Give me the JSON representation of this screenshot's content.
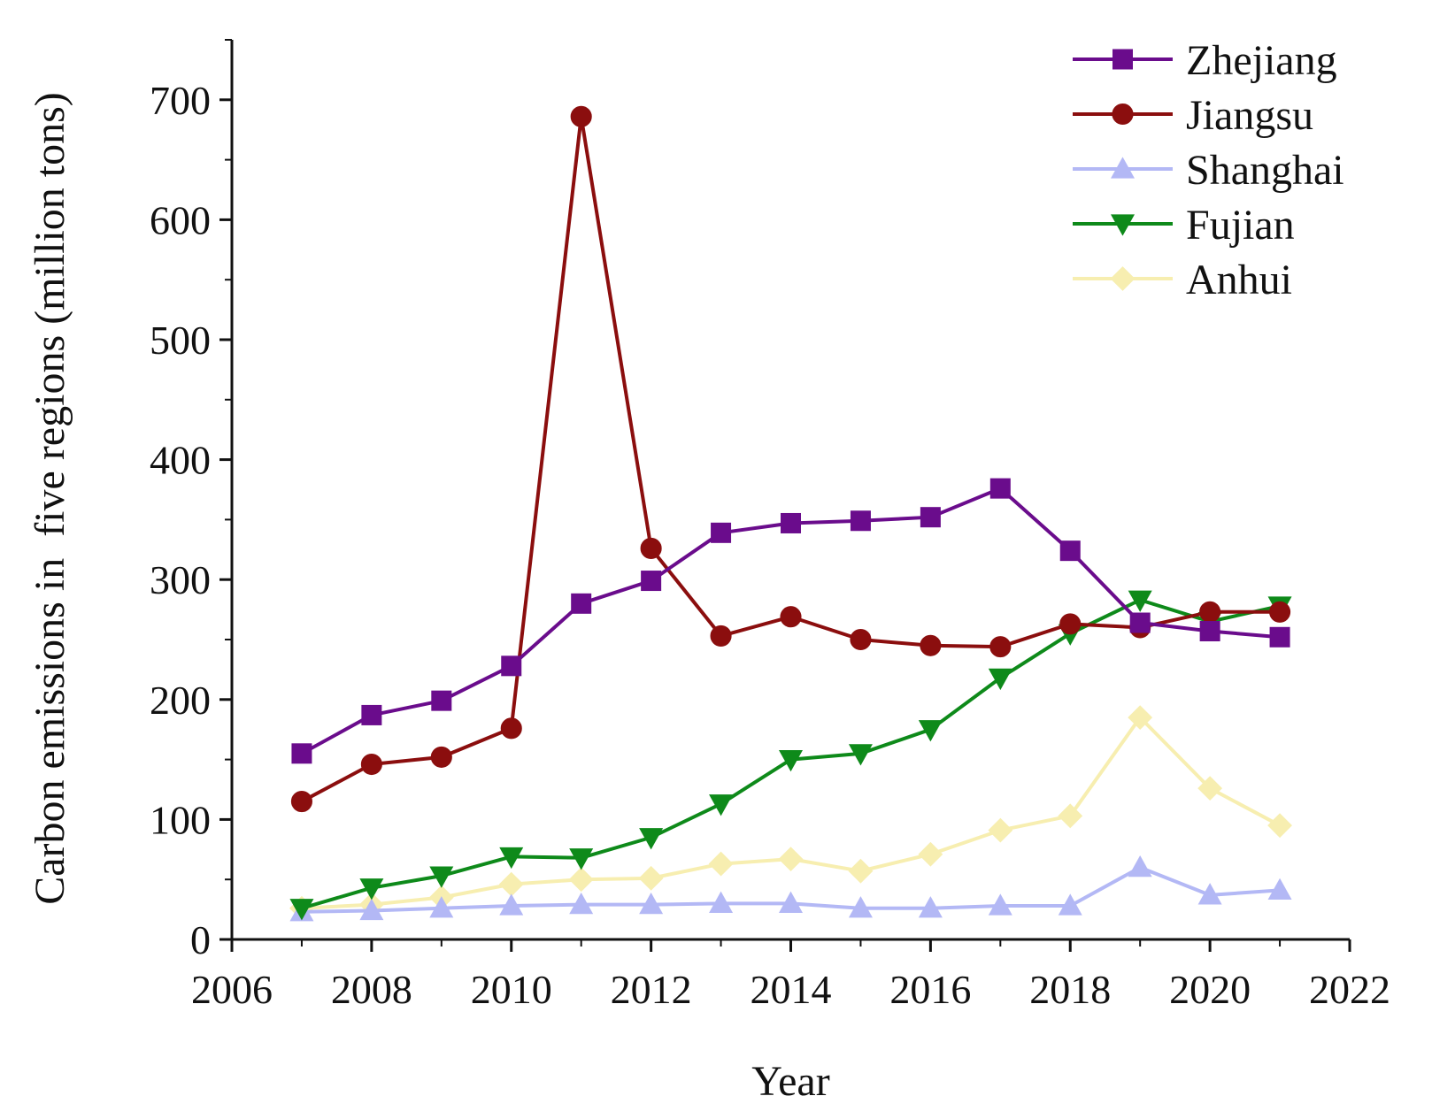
{
  "chart_data": {
    "type": "line",
    "title": "",
    "xlabel": "Year",
    "ylabel": "Carbon emissions in  five regions (million tons)",
    "xlim": [
      2006,
      2022
    ],
    "ylim": [
      0,
      750
    ],
    "x_ticks": [
      2006,
      2008,
      2010,
      2012,
      2014,
      2016,
      2018,
      2020,
      2022
    ],
    "y_ticks": [
      0,
      100,
      200,
      300,
      400,
      500,
      600,
      700
    ],
    "x_tick_labels": [
      "2006",
      "2008",
      "2010",
      "2012",
      "2014",
      "2016",
      "2018",
      "2020",
      "2022"
    ],
    "y_tick_labels": [
      "0",
      "100",
      "200",
      "300",
      "400",
      "500",
      "600",
      "700"
    ],
    "legend_position": "top-right",
    "x": [
      2007,
      2008,
      2009,
      2010,
      2011,
      2012,
      2013,
      2014,
      2015,
      2016,
      2017,
      2018,
      2019,
      2020,
      2021
    ],
    "series": [
      {
        "name": "Zhejiang",
        "color": "#6a0c8c",
        "marker": "square",
        "values": [
          155,
          187,
          199,
          228,
          280,
          299,
          339,
          347,
          349,
          352,
          376,
          324,
          264,
          257,
          252
        ]
      },
      {
        "name": "Jiangsu",
        "color": "#8b0e0e",
        "marker": "circle",
        "values": [
          115,
          146,
          152,
          176,
          686,
          326,
          253,
          269,
          250,
          245,
          244,
          263,
          260,
          273,
          273
        ]
      },
      {
        "name": "Shanghai",
        "color": "#b3b8f5",
        "marker": "triangle-up",
        "values": [
          23,
          24,
          26,
          28,
          29,
          29,
          30,
          30,
          26,
          26,
          28,
          28,
          60,
          37,
          41
        ]
      },
      {
        "name": "Fujian",
        "color": "#0e8a1a",
        "marker": "triangle-down",
        "values": [
          26,
          43,
          53,
          69,
          68,
          85,
          113,
          150,
          155,
          175,
          218,
          255,
          283,
          265,
          278
        ]
      },
      {
        "name": "Anhui",
        "color": "#f7eeb0",
        "marker": "diamond",
        "values": [
          26,
          29,
          35,
          46,
          50,
          51,
          63,
          67,
          57,
          71,
          91,
          103,
          185,
          126,
          95
        ]
      }
    ]
  }
}
